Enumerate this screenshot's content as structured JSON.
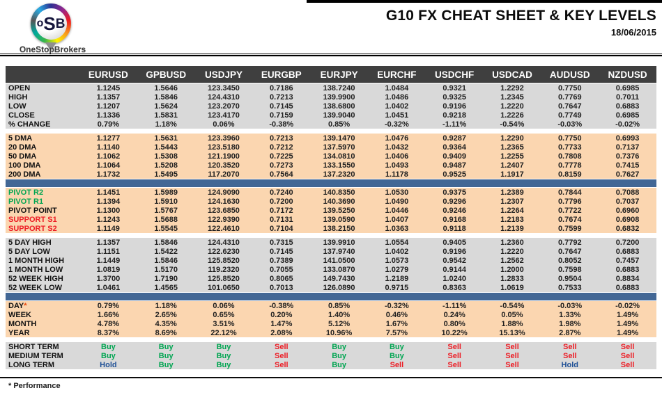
{
  "header": {
    "title": "G10 FX CHEAT SHEET & KEY LEVELS",
    "date": "18/06/2015",
    "logo": {
      "letters": [
        "o",
        "S",
        "B"
      ],
      "brand": "OneStopBrokers"
    }
  },
  "footer": {
    "note": "* Performance"
  },
  "colors": {
    "header_bar_bg": "#3f3f3f",
    "gray_block_bg": "#d9d9d9",
    "peach_block_bg": "#fbd6b0",
    "blue_separator": "#426795",
    "buy_green": "#00a551",
    "sell_red": "#ed1c24",
    "hold_blue": "#1f5096",
    "asterisk_orange": "#e8490f"
  },
  "table": {
    "columns": [
      "EURUSD",
      "GPBUSD",
      "USDJPY",
      "EURGBP",
      "EURJPY",
      "EURCHF",
      "USDCHF",
      "USDCAD",
      "AUDUSD",
      "NZDUSD"
    ],
    "groups": [
      {
        "id": "ohlc",
        "theme": "gray",
        "after": "gap",
        "rows": [
          {
            "label": "OPEN",
            "values": [
              "1.1245",
              "1.5646",
              "123.3450",
              "0.7186",
              "138.7240",
              "1.0484",
              "0.9321",
              "1.2292",
              "0.7750",
              "0.6985"
            ]
          },
          {
            "label": "HIGH",
            "values": [
              "1.1357",
              "1.5846",
              "124.4310",
              "0.7213",
              "139.9900",
              "1.0486",
              "0.9325",
              "1.2345",
              "0.7769",
              "0.7011"
            ]
          },
          {
            "label": "LOW",
            "values": [
              "1.1207",
              "1.5624",
              "123.2070",
              "0.7145",
              "138.6800",
              "1.0402",
              "0.9196",
              "1.2220",
              "0.7647",
              "0.6883"
            ]
          },
          {
            "label": "CLOSE",
            "values": [
              "1.1336",
              "1.5831",
              "123.4170",
              "0.7159",
              "139.9040",
              "1.0451",
              "0.9218",
              "1.2226",
              "0.7749",
              "0.6985"
            ]
          },
          {
            "label": "% CHANGE",
            "values": [
              "0.79%",
              "1.18%",
              "0.06%",
              "-0.38%",
              "0.85%",
              "-0.32%",
              "-1.11%",
              "-0.54%",
              "-0.03%",
              "-0.02%"
            ]
          }
        ]
      },
      {
        "id": "dma",
        "theme": "peach",
        "after": "blue",
        "rows": [
          {
            "label": "5 DMA",
            "values": [
              "1.1277",
              "1.5631",
              "123.3960",
              "0.7213",
              "139.1470",
              "1.0476",
              "0.9287",
              "1.2290",
              "0.7750",
              "0.6993"
            ]
          },
          {
            "label": "20 DMA",
            "values": [
              "1.1140",
              "1.5443",
              "123.5180",
              "0.7212",
              "137.5970",
              "1.0432",
              "0.9364",
              "1.2365",
              "0.7733",
              "0.7137"
            ]
          },
          {
            "label": "50 DMA",
            "values": [
              "1.1062",
              "1.5308",
              "121.1900",
              "0.7225",
              "134.0810",
              "1.0406",
              "0.9409",
              "1.2255",
              "0.7808",
              "0.7376"
            ]
          },
          {
            "label": "100 DMA",
            "values": [
              "1.1064",
              "1.5208",
              "120.3520",
              "0.7273",
              "133.1550",
              "1.0493",
              "0.9487",
              "1.2407",
              "0.7778",
              "0.7415"
            ]
          },
          {
            "label": "200 DMA",
            "values": [
              "1.1732",
              "1.5495",
              "117.2070",
              "0.7564",
              "137.2320",
              "1.1178",
              "0.9525",
              "1.1917",
              "0.8159",
              "0.7627"
            ]
          }
        ]
      },
      {
        "id": "pivots",
        "theme": "peach",
        "after": "gap",
        "rows": [
          {
            "label": "PIVOT R2",
            "label_color": "green",
            "values": [
              "1.1451",
              "1.5989",
              "124.9090",
              "0.7240",
              "140.8350",
              "1.0530",
              "0.9375",
              "1.2389",
              "0.7844",
              "0.7088"
            ]
          },
          {
            "label": "PIVOT R1",
            "label_color": "green",
            "values": [
              "1.1394",
              "1.5910",
              "124.1630",
              "0.7200",
              "140.3690",
              "1.0490",
              "0.9296",
              "1.2307",
              "0.7796",
              "0.7037"
            ]
          },
          {
            "label": "PIVOT POINT",
            "values": [
              "1.1300",
              "1.5767",
              "123.6850",
              "0.7172",
              "139.5250",
              "1.0446",
              "0.9246",
              "1.2264",
              "0.7722",
              "0.6960"
            ]
          },
          {
            "label": "SUPPORT S1",
            "label_color": "red",
            "values": [
              "1.1243",
              "1.5688",
              "122.9390",
              "0.7131",
              "139.0590",
              "1.0407",
              "0.9168",
              "1.2183",
              "0.7674",
              "0.6908"
            ]
          },
          {
            "label": "SUPPORT S2",
            "label_color": "red",
            "values": [
              "1.1149",
              "1.5545",
              "122.4610",
              "0.7104",
              "138.2150",
              "1.0363",
              "0.9118",
              "1.2139",
              "0.7599",
              "0.6832"
            ]
          }
        ]
      },
      {
        "id": "ranges",
        "theme": "gray",
        "after": "blue",
        "rows": [
          {
            "label": "5 DAY HIGH",
            "values": [
              "1.1357",
              "1.5846",
              "124.4310",
              "0.7315",
              "139.9910",
              "1.0554",
              "0.9405",
              "1.2360",
              "0.7792",
              "0.7200"
            ]
          },
          {
            "label": "5 DAY LOW",
            "values": [
              "1.1151",
              "1.5422",
              "122.6230",
              "0.7145",
              "137.9740",
              "1.0402",
              "0.9196",
              "1.2220",
              "0.7647",
              "0.6883"
            ]
          },
          {
            "label": "1 MONTH HIGH",
            "values": [
              "1.1449",
              "1.5846",
              "125.8520",
              "0.7389",
              "141.0500",
              "1.0573",
              "0.9542",
              "1.2562",
              "0.8052",
              "0.7457"
            ]
          },
          {
            "label": "1 MONTH LOW",
            "values": [
              "1.0819",
              "1.5170",
              "119.2320",
              "0.7055",
              "133.0870",
              "1.0279",
              "0.9144",
              "1.2000",
              "0.7598",
              "0.6883"
            ]
          },
          {
            "label": "52 WEEK HIGH",
            "values": [
              "1.3700",
              "1.7190",
              "125.8520",
              "0.8065",
              "149.7430",
              "1.2189",
              "1.0240",
              "1.2833",
              "0.9504",
              "0.8834"
            ]
          },
          {
            "label": "52 WEEK LOW",
            "values": [
              "1.0461",
              "1.4565",
              "101.0650",
              "0.7013",
              "126.0890",
              "0.9715",
              "0.8363",
              "1.0619",
              "0.7533",
              "0.6883"
            ]
          }
        ]
      },
      {
        "id": "performance",
        "theme": "peach",
        "after": "gap",
        "rows": [
          {
            "label": "DAY",
            "label_mark": "*",
            "values": [
              "0.79%",
              "1.18%",
              "0.06%",
              "-0.38%",
              "0.85%",
              "-0.32%",
              "-1.11%",
              "-0.54%",
              "-0.03%",
              "-0.02%"
            ]
          },
          {
            "label": "WEEK",
            "values": [
              "1.66%",
              "2.65%",
              "0.65%",
              "0.20%",
              "1.40%",
              "0.46%",
              "0.24%",
              "0.05%",
              "1.33%",
              "1.49%"
            ]
          },
          {
            "label": "MONTH",
            "values": [
              "4.78%",
              "4.35%",
              "3.51%",
              "1.47%",
              "5.12%",
              "1.67%",
              "0.80%",
              "1.88%",
              "1.98%",
              "1.49%"
            ]
          },
          {
            "label": "YEAR",
            "values": [
              "8.37%",
              "8.69%",
              "22.12%",
              "2.08%",
              "10.96%",
              "7.57%",
              "10.22%",
              "15.13%",
              "2.87%",
              "1.49%"
            ]
          }
        ]
      },
      {
        "id": "signals",
        "theme": "gray",
        "type": "signal",
        "after": "none",
        "rows": [
          {
            "label": "SHORT TERM",
            "values": [
              "Buy",
              "Buy",
              "Buy",
              "Sell",
              "Buy",
              "Buy",
              "Sell",
              "Sell",
              "Sell",
              "Sell"
            ]
          },
          {
            "label": "MEDIUM TERM",
            "values": [
              "Buy",
              "Buy",
              "Buy",
              "Sell",
              "Buy",
              "Buy",
              "Sell",
              "Sell",
              "Sell",
              "Sell"
            ]
          },
          {
            "label": "LONG TERM",
            "values": [
              "Hold",
              "Buy",
              "Buy",
              "Sell",
              "Buy",
              "Sell",
              "Sell",
              "Sell",
              "Hold",
              "Sell"
            ]
          }
        ]
      }
    ]
  }
}
